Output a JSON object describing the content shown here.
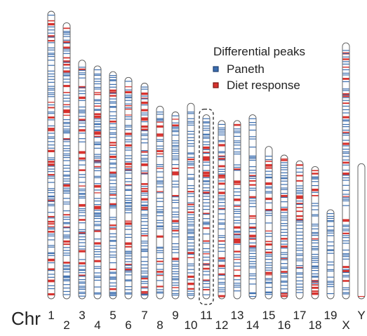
{
  "axis": {
    "prefix": "Chr"
  },
  "legend": {
    "title": "Differential peaks",
    "items": [
      {
        "label": "Paneth",
        "color": "#3a6db0",
        "border": "#1f3f70"
      },
      {
        "label": "Diet response",
        "color": "#d8322e",
        "border": "#7a1410"
      }
    ]
  },
  "highlighted_chromosome": "11",
  "chromosomes": [
    {
      "name": "1",
      "relative_length": 1.0
    },
    {
      "name": "2",
      "relative_length": 0.96
    },
    {
      "name": "3",
      "relative_length": 0.83
    },
    {
      "name": "4",
      "relative_length": 0.81
    },
    {
      "name": "5",
      "relative_length": 0.79
    },
    {
      "name": "6",
      "relative_length": 0.77
    },
    {
      "name": "7",
      "relative_length": 0.75
    },
    {
      "name": "8",
      "relative_length": 0.67
    },
    {
      "name": "9",
      "relative_length": 0.65
    },
    {
      "name": "10",
      "relative_length": 0.68
    },
    {
      "name": "11",
      "relative_length": 0.64
    },
    {
      "name": "12",
      "relative_length": 0.62
    },
    {
      "name": "13",
      "relative_length": 0.62
    },
    {
      "name": "14",
      "relative_length": 0.64
    },
    {
      "name": "15",
      "relative_length": 0.53
    },
    {
      "name": "16",
      "relative_length": 0.5
    },
    {
      "name": "17",
      "relative_length": 0.48
    },
    {
      "name": "18",
      "relative_length": 0.46
    },
    {
      "name": "19",
      "relative_length": 0.31
    },
    {
      "name": "X",
      "relative_length": 0.89
    },
    {
      "name": "Y",
      "relative_length": 0.47
    }
  ]
}
